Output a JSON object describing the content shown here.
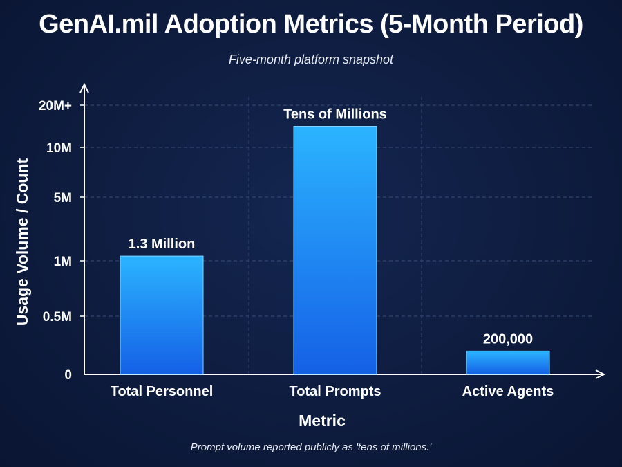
{
  "chart_data": {
    "type": "bar",
    "title": "GenAI.mil Adoption Metrics (5-Month Period)",
    "subtitle": "Five-month platform snapshot",
    "xlabel": "Metric",
    "ylabel": "Usage Volume / Count",
    "y_ticks": [
      "0",
      "0.5M",
      "1M",
      "5M",
      "10M",
      "20M+"
    ],
    "y_tick_values": [
      0,
      500000,
      1000000,
      5000000,
      10000000,
      20000000
    ],
    "y_scale": "nonlinear (labeled ticks)",
    "categories": [
      "Total Personnel",
      "Total Prompts",
      "Active Agents"
    ],
    "values": [
      1300000,
      15000000,
      200000
    ],
    "data_labels": [
      "1.3 Million",
      "Tens of Millions",
      "200,000"
    ],
    "footnote": "Prompt volume reported publicly as 'tens of millions.'",
    "grid": true,
    "colors": {
      "background": "#0e1c3f",
      "bar_top": "#2bb4ff",
      "bar_bottom": "#1560e6",
      "grid": "#3a4d78",
      "text": "#ffffff"
    }
  }
}
